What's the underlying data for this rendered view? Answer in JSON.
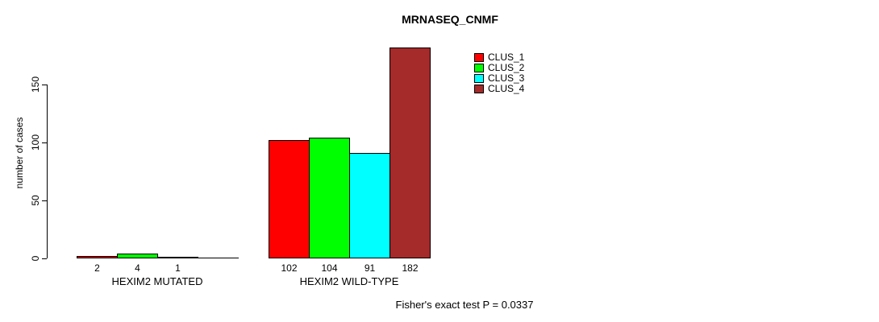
{
  "chart_data": {
    "type": "bar",
    "title": "MRNASEQ_CNMF",
    "ylabel": "number of cases",
    "xlabel": "",
    "yticks": [
      0,
      50,
      100,
      150
    ],
    "ylim": [
      0,
      150
    ],
    "grid": false,
    "background_color": "#ffffff",
    "bar_border_color": "#000000",
    "categories": [
      "HEXIM2 MUTATED",
      "HEXIM2 WILD-TYPE"
    ],
    "series": [
      {
        "name": "CLUS_1",
        "color": "#ff0000",
        "values": [
          2,
          102
        ]
      },
      {
        "name": "CLUS_2",
        "color": "#00ff00",
        "values": [
          4,
          104
        ]
      },
      {
        "name": "CLUS_3",
        "color": "#00ffff",
        "values": [
          1,
          91
        ]
      },
      {
        "name": "CLUS_4",
        "color": "#a52a2a",
        "values": [
          0,
          182
        ]
      }
    ],
    "bar_value_labels": [
      [
        "2",
        "4",
        "1",
        ""
      ],
      [
        "102",
        "104",
        "91",
        "182"
      ]
    ],
    "legend": {
      "position": "top-right",
      "entries": [
        "CLUS_1",
        "CLUS_2",
        "CLUS_3",
        "CLUS_4"
      ]
    },
    "annotation": "Fisher's exact test P = 0.0337"
  }
}
